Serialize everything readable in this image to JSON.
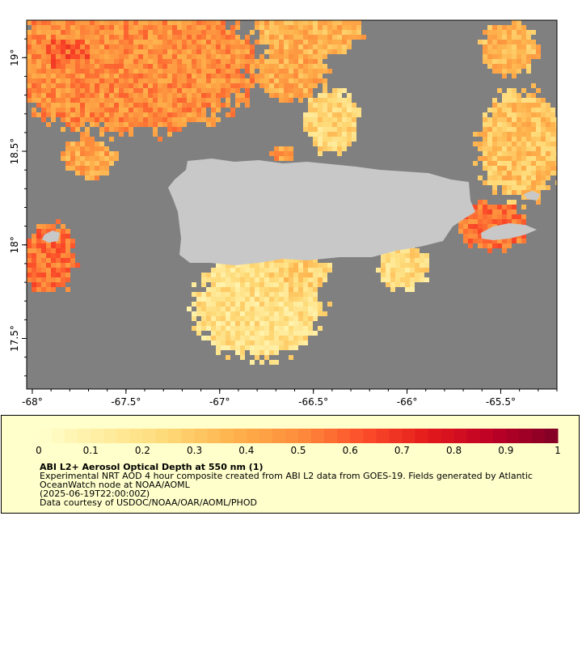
{
  "map": {
    "x_ticks": [
      {
        "lon": -68,
        "label": "-68°"
      },
      {
        "lon": -67.5,
        "label": "-67.5°"
      },
      {
        "lon": -67,
        "label": "-67°"
      },
      {
        "lon": -66.5,
        "label": "-66.5°"
      },
      {
        "lon": -66,
        "label": "-66°"
      },
      {
        "lon": -65.5,
        "label": "-65.5°"
      }
    ],
    "y_ticks": [
      {
        "lat": 19,
        "label": "19°"
      },
      {
        "lat": 18.5,
        "label": "18.5°"
      },
      {
        "lat": 18,
        "label": "18°"
      },
      {
        "lat": 17.5,
        "label": "17.5°"
      }
    ],
    "lon_range": [
      -68.03,
      -65.2
    ],
    "lat_range": [
      17.23,
      19.2
    ],
    "colors": {
      "ocean": "#808080",
      "land": "#c8c8c8",
      "frame": "#000000"
    }
  },
  "colorbar": {
    "min": 0,
    "max": 1,
    "segments": 40,
    "tick_labels": [
      "0",
      "0.1",
      "0.2",
      "0.3",
      "0.4",
      "0.5",
      "0.6",
      "0.7",
      "0.8",
      "0.9",
      "1"
    ],
    "colors": [
      "#ffffcc",
      "#ffeda0",
      "#fed976",
      "#feb24c",
      "#fd8d3c",
      "#fc4e2a",
      "#e31a1c",
      "#bd0026",
      "#800026"
    ]
  },
  "legend": {
    "title": "ABI L2+ Aerosol Optical Depth at 550 nm (1)",
    "description": "Experimental NRT AOD 4 hour composite created from ABI L2 data from GOES-19. Fields generated by Atlantic OceanWatch node at NOAA/AOML",
    "timestamp": "(2025-06-19T22:00:00Z)",
    "credit": "Data courtesy of USDOC/NOAA/OAR/AOML/PHOD"
  }
}
